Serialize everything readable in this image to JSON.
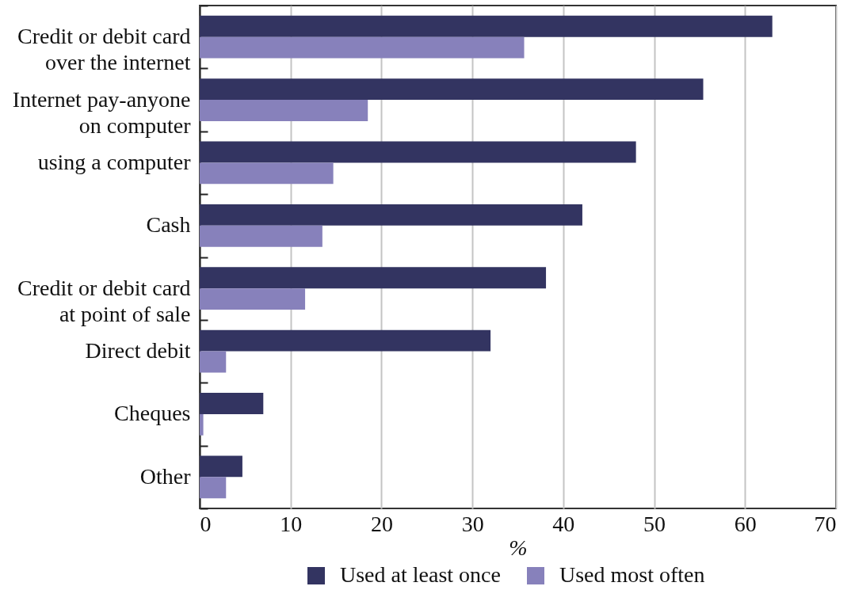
{
  "chart_data": {
    "type": "bar",
    "orientation": "horizontal",
    "categories": [
      "Credit or debit card over the internet",
      "Internet pay-anyone on computer",
      "using a computer",
      "Cash",
      "Credit or debit card at point of sale",
      "Direct debit",
      "Cheques",
      "Other"
    ],
    "series": [
      {
        "name": "Used at least once",
        "color": "#333461",
        "values": [
          63,
          55.4,
          48,
          42.1,
          38.1,
          32,
          7,
          4.7
        ]
      },
      {
        "name": "Used most often",
        "color": "#8781bb",
        "values": [
          35.7,
          18.5,
          14.7,
          13.5,
          11.6,
          2.9,
          0.4,
          2.9
        ]
      }
    ],
    "xlabel": "%",
    "xlim": [
      0,
      70
    ],
    "xticks": [
      0,
      10,
      20,
      30,
      40,
      50,
      60,
      70
    ],
    "grid": "x",
    "legend": "bottom"
  }
}
